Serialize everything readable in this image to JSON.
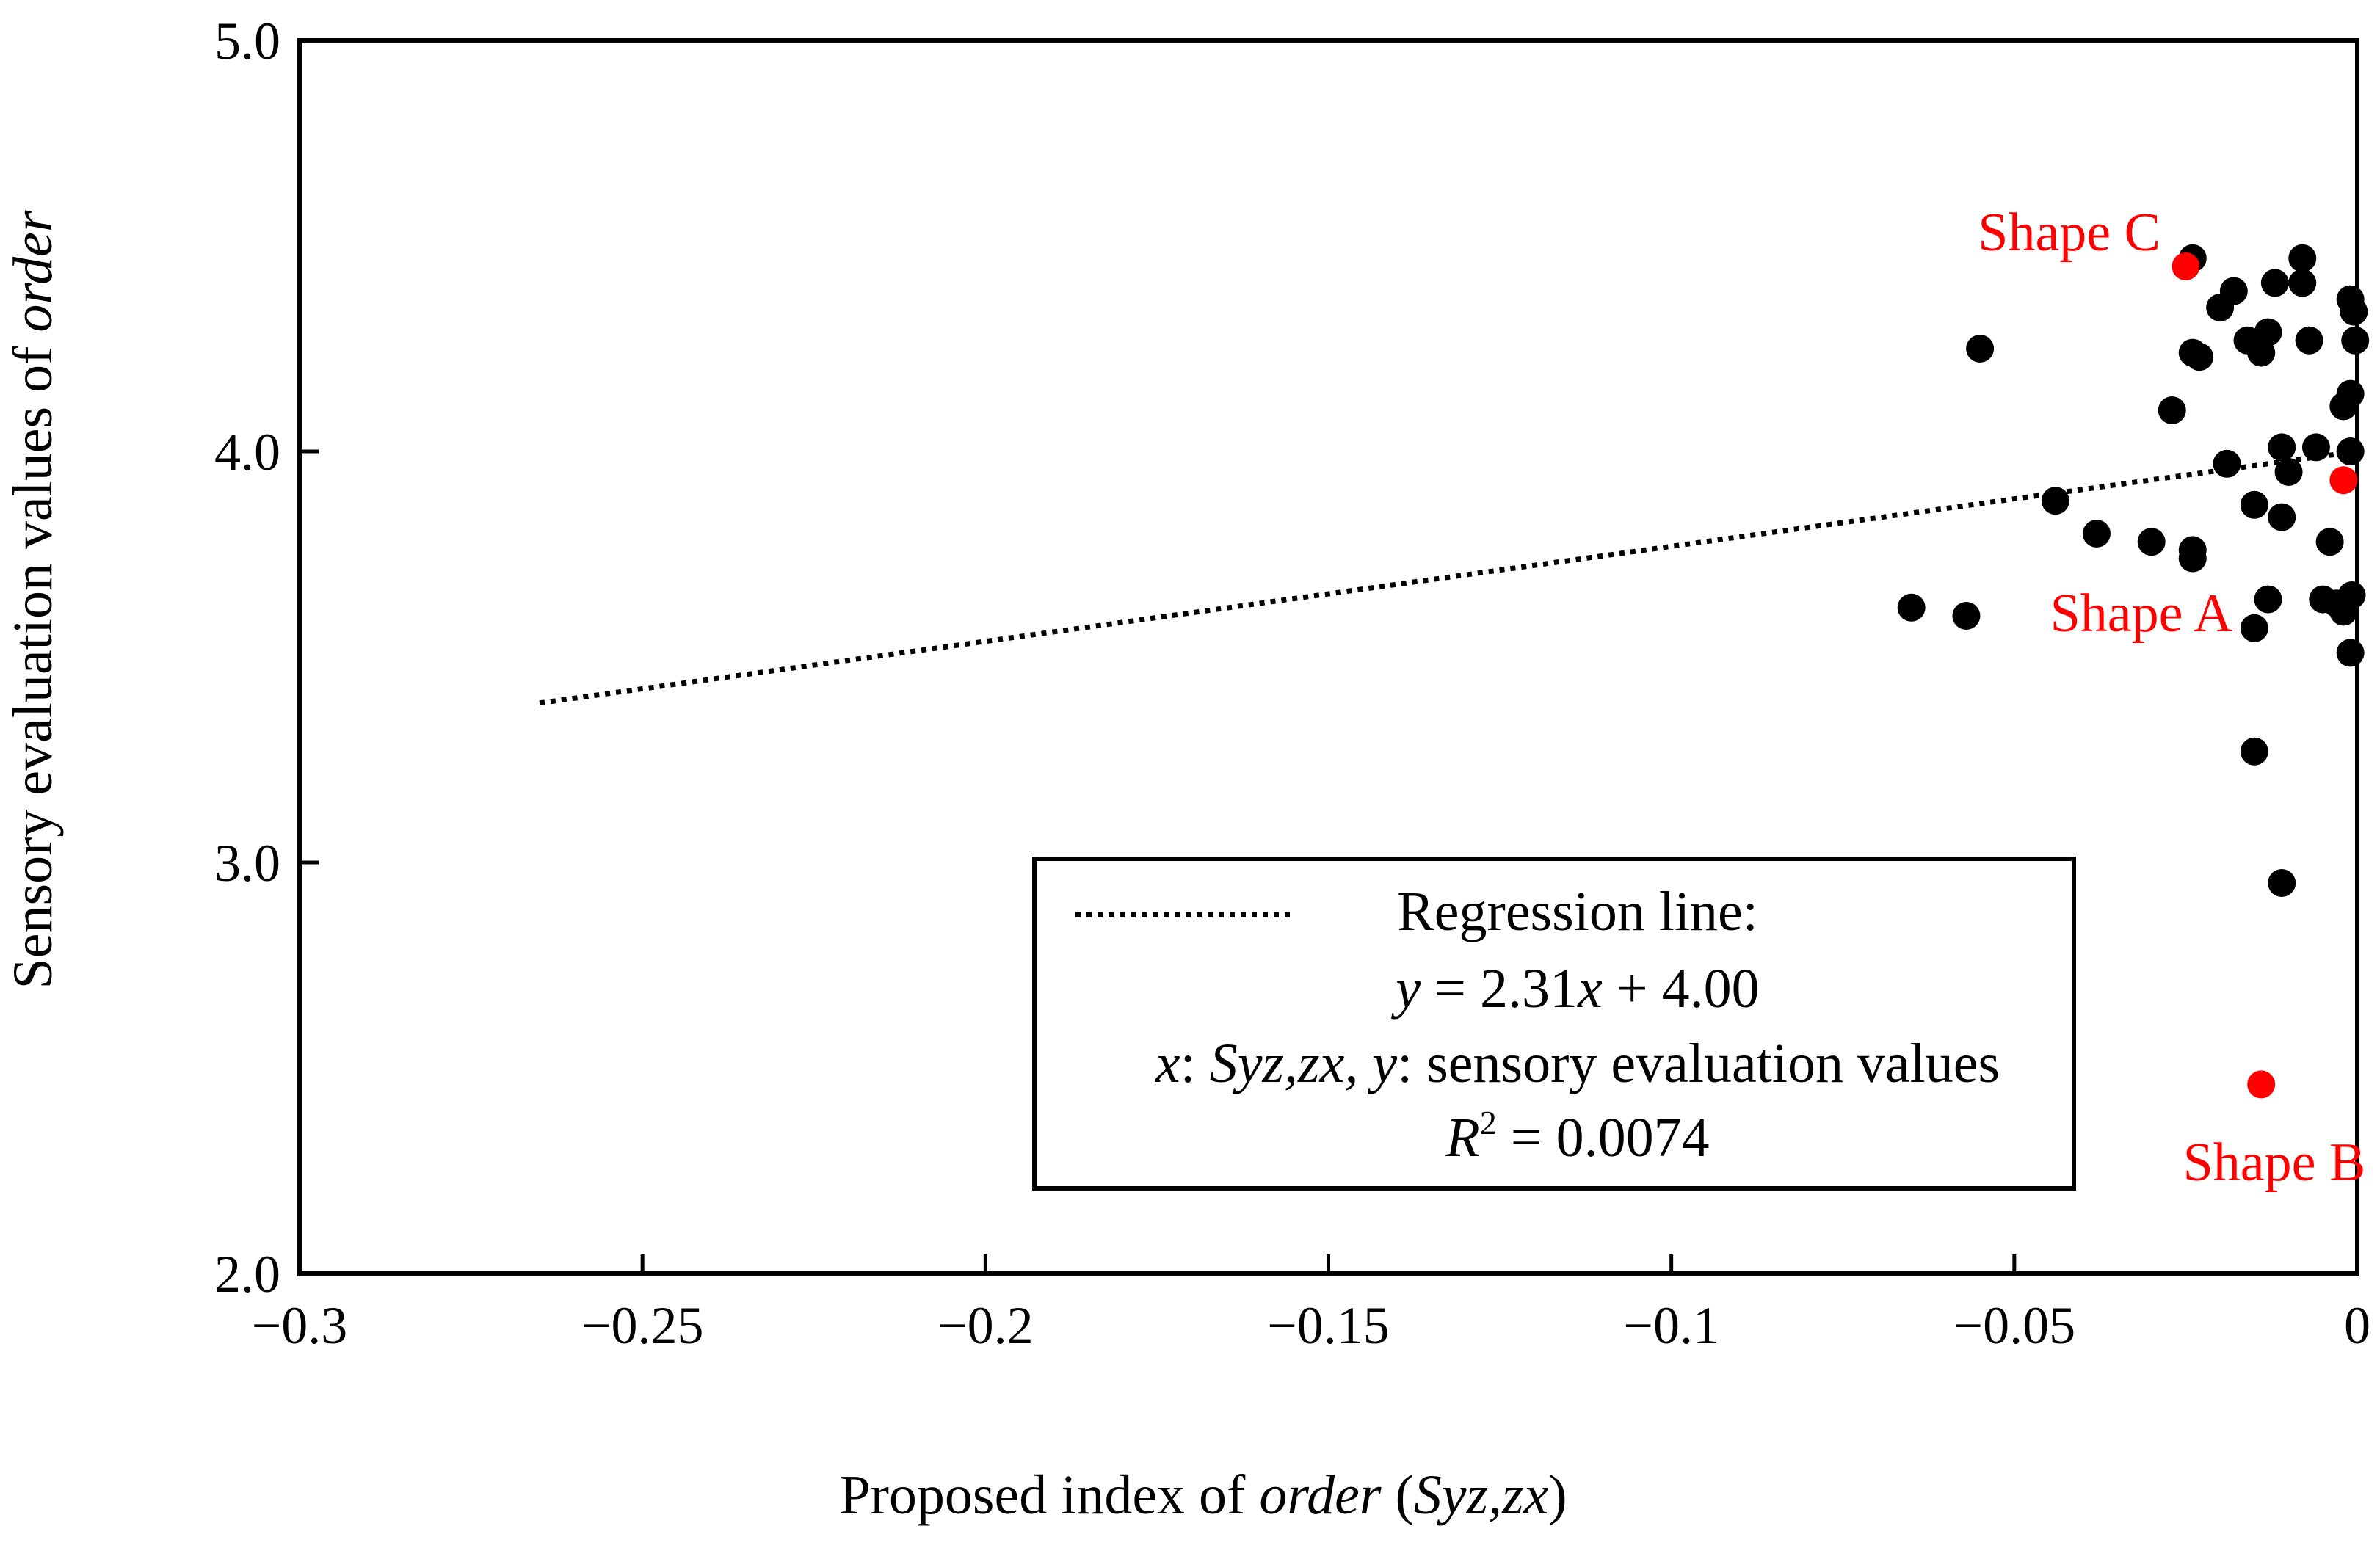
{
  "chart_data": {
    "type": "scatter",
    "title": "",
    "xlabel": {
      "pre": "Proposed index of ",
      "italic": "order",
      "post1": " (",
      "italic2": "Syz,zx",
      "post2": ")"
    },
    "ylabel": {
      "pre": "Sensory evaluation values of ",
      "italic": "order"
    },
    "xlim": [
      -0.3,
      0
    ],
    "ylim": [
      2.0,
      5.0
    ],
    "x_ticks": [
      -0.3,
      -0.25,
      -0.2,
      -0.15,
      -0.1,
      -0.05,
      0
    ],
    "x_tick_labels": [
      "−0.3",
      "−0.25",
      "−0.2",
      "−0.15",
      "−0.1",
      "−0.05",
      "0"
    ],
    "y_ticks": [
      2.0,
      3.0,
      4.0,
      5.0
    ],
    "y_tick_labels": [
      "2.0",
      "3.0",
      "4.0",
      "5.0"
    ],
    "grid": false,
    "points": [
      [
        -0.024,
        4.47
      ],
      [
        -0.008,
        4.47
      ],
      [
        -0.012,
        4.41
      ],
      [
        -0.008,
        4.41
      ],
      [
        -0.018,
        4.39
      ],
      [
        -0.02,
        4.35
      ],
      [
        -0.001,
        4.37
      ],
      [
        -0.0005,
        4.34
      ],
      [
        -0.013,
        4.29
      ],
      [
        -0.016,
        4.27
      ],
      [
        -0.007,
        4.27
      ],
      [
        -0.0003,
        4.27
      ],
      [
        -0.014,
        4.24
      ],
      [
        -0.024,
        4.24
      ],
      [
        -0.023,
        4.23
      ],
      [
        -0.055,
        4.25
      ],
      [
        -0.001,
        4.14
      ],
      [
        -0.002,
        4.11
      ],
      [
        -0.027,
        4.1
      ],
      [
        -0.011,
        4.01
      ],
      [
        -0.006,
        4.01
      ],
      [
        -0.001,
        4.0
      ],
      [
        -0.019,
        3.97
      ],
      [
        -0.01,
        3.95
      ],
      [
        -0.015,
        3.87
      ],
      [
        -0.044,
        3.88
      ],
      [
        -0.011,
        3.84
      ],
      [
        -0.038,
        3.8
      ],
      [
        -0.03,
        3.78
      ],
      [
        -0.004,
        3.78
      ],
      [
        -0.024,
        3.76
      ],
      [
        -0.024,
        3.74
      ],
      [
        -0.013,
        3.64
      ],
      [
        -0.005,
        3.64
      ],
      [
        -0.003,
        3.63
      ],
      [
        -0.0008,
        3.65
      ],
      [
        -0.002,
        3.61
      ],
      [
        -0.065,
        3.62
      ],
      [
        -0.057,
        3.6
      ],
      [
        -0.015,
        3.57
      ],
      [
        -0.001,
        3.51
      ],
      [
        -0.015,
        3.27
      ],
      [
        -0.011,
        2.95
      ]
    ],
    "highlighted": [
      {
        "name": "Shape A",
        "x": -0.002,
        "y": 3.93
      },
      {
        "name": "Shape B",
        "x": -0.014,
        "y": 2.46
      },
      {
        "name": "Shape C",
        "x": -0.025,
        "y": 4.45
      }
    ],
    "regression": {
      "slope": 2.31,
      "intercept": 4.0,
      "x_range": [
        -0.265,
        0
      ]
    },
    "legend": {
      "line_label": "Regression line:",
      "eq_lhs": "y",
      "eq_mid": " = 2.31",
      "eq_x": "x",
      "eq_rhs": " + 4.00",
      "def_x": "x",
      "def_mid1": ": ",
      "def_syz": "Syz,zx, y",
      "def_rest": ": sensory evaluation values",
      "r2_r": "R",
      "r2_sup": "2",
      "r2_rest": " = 0.0074"
    },
    "colors": {
      "points": "#000000",
      "highlight": "#ff0000",
      "axis": "#000000"
    }
  }
}
